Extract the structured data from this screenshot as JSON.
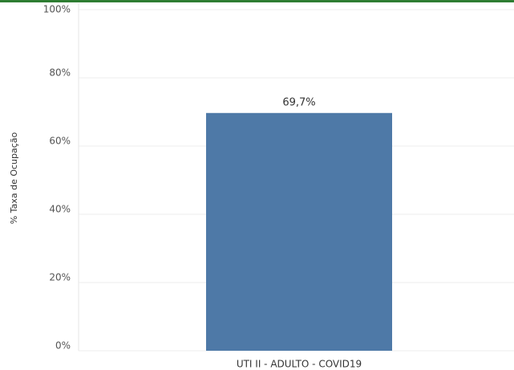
{
  "chart_data": {
    "type": "bar",
    "y_label": "% Taxa de Ocupação",
    "categories": [
      "UTI II - ADULTO - COVID19"
    ],
    "values": [
      69.7
    ],
    "value_labels": [
      "69,7%"
    ],
    "color": "#4e79a7",
    "ylim": [
      0,
      100
    ],
    "yticks": [
      {
        "value": 0,
        "label": "0%"
      },
      {
        "value": 20,
        "label": "20%"
      },
      {
        "value": 40,
        "label": "40%"
      },
      {
        "value": 60,
        "label": "60%"
      },
      {
        "value": 80,
        "label": "80%"
      },
      {
        "value": 100,
        "label": "100%"
      }
    ],
    "grid": true
  }
}
